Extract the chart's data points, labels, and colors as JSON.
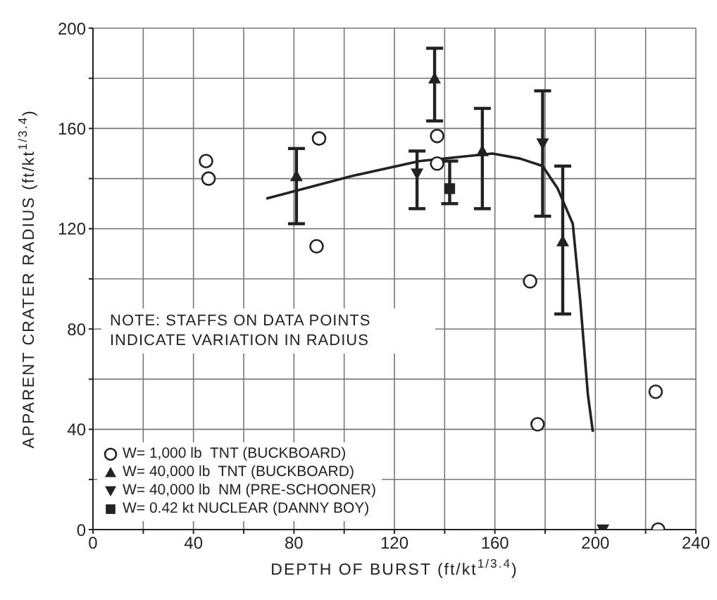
{
  "chart_data": {
    "type": "scatter",
    "xlabel": "DEPTH OF BURST (ft/kt$^{1/3.4}$)",
    "ylabel": "APPARENT CRATER RADIUS (ft/kt$^{1/3.4}$)",
    "annotations": [
      "NOTE: STAFFS ON DATA POINTS INDICATE VARIATION IN RADIUS"
    ],
    "series": [
      {
        "name": "W= 1,000 lb  TNT (BUCKBOARD)",
        "marker": "circle",
        "color": "#222222",
        "x": [
          45,
          46,
          90,
          89,
          137,
          137,
          174,
          177,
          224,
          225
        ],
        "values": [
          147,
          140,
          156,
          113,
          157,
          146,
          99,
          42,
          55,
          0
        ]
      },
      {
        "name": "W= 40,000 lb  TNT (BUCKBOARD)",
        "marker": "triangle",
        "color": "#222222",
        "x": [
          81,
          136,
          155,
          187
        ],
        "values": [
          141,
          180,
          151,
          115
        ],
        "errors": [
          [
            122,
            152
          ],
          [
            163,
            192
          ],
          [
            128,
            168
          ],
          [
            86,
            145
          ]
        ]
      },
      {
        "name": "W= 40,000 lb  NM (PRE-SCHOONER)",
        "marker": "triangle-down",
        "color": "#222222",
        "x": [
          129,
          179,
          203
        ],
        "values": [
          142,
          154,
          0
        ],
        "errors": [
          [
            128,
            151
          ],
          [
            125,
            175
          ],
          null
        ]
      },
      {
        "name": "W= 0.42 kt NUCLEAR (DANNY BOY)",
        "marker": "square",
        "color": "#222222",
        "x": [
          142
        ],
        "values": [
          136
        ],
        "errors": [
          [
            130,
            147
          ]
        ]
      },
      {
        "type": "line",
        "marker": "none",
        "color": "#222222",
        "x": [
          69,
          103,
          130,
          159,
          170,
          179,
          185,
          191,
          194,
          197,
          199
        ],
        "values": [
          132,
          141,
          147,
          150,
          148,
          145,
          136,
          122,
          91,
          54,
          39
        ]
      }
    ],
    "xlim": [
      0,
      240
    ],
    "xticks": [
      0,
      {
        "value": 20,
        "label": null
      },
      40,
      {
        "value": 60,
        "label": null
      },
      80,
      {
        "value": 100,
        "label": null
      },
      120,
      {
        "value": 140,
        "label": null
      },
      160,
      {
        "value": 180,
        "label": null
      },
      200,
      {
        "value": 220,
        "label": null
      },
      240
    ],
    "ylim": [
      0,
      200
    ],
    "yticks": [
      0,
      {
        "value": 20,
        "label": null
      },
      40,
      {
        "value": 60,
        "label": null
      },
      80,
      {
        "value": 100,
        "label": null
      },
      120,
      {
        "value": 140,
        "label": null
      },
      160,
      {
        "value": 180,
        "label": null
      },
      200
    ],
    "grid": true,
    "legend": "bottom left"
  }
}
